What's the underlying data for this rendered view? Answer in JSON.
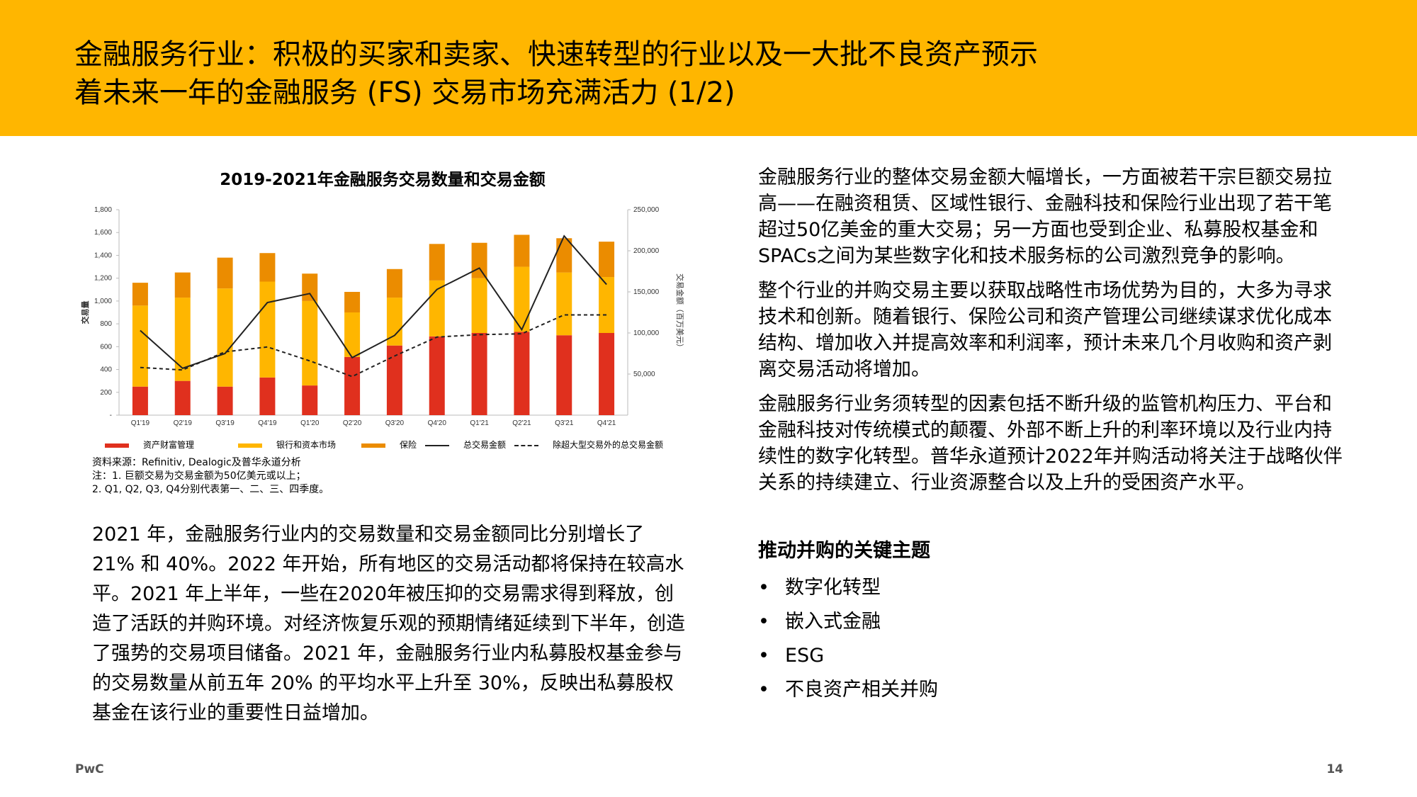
{
  "slide": {
    "title_line1": "金融服务行业：积极的买家和卖家、快速转型的行业以及一大批不良资产预示",
    "title_line2": "着未来一年的金融服务 (FS) 交易市场充满活力 (1/2)",
    "left_body": "2021 年，金融服务行业内的交易数量和交易金额同比分别增长了 21% 和 40%。2022 年开始，所有地区的交易活动都将保持在较高水平。2021 年上半年，一些在2020年被压抑的交易需求得到释放，创造了活跃的并购环境。对经济恢复乐观的预期情绪延续到下半年，创造了强势的交易项目储备。2021 年，金融服务行业内私募股权基金参与的交易数量从前五年 20% 的平均水平上升至 30%，反映出私募股权基金在该行业的重要性日益增加。",
    "right_paragraphs": [
      "金融服务行业的整体交易金额大幅增长，一方面被若干宗巨额交易拉高——在融资租赁、区域性银行、金融科技和保险行业出现了若干笔超过50亿美金的重大交易；另一方面也受到企业、私募股权基金和SPACs之间为某些数字化和技术服务标的公司激烈竞争的影响。",
      "整个行业的并购交易主要以获取战略性市场优势为目的，大多为寻求技术和创新。随着银行、保险公司和资产管理公司继续谋求优化成本结构、增加收入并提高效率和利润率，预计未来几个月收购和资产剥离交易活动将增加。",
      "金融服务行业务须转型的因素包括不断升级的监管机构压力、平台和金融科技对传统模式的颠覆、外部不断上升的利率环境以及行业内持续性的数字化转型。普华永道预计2022年并购活动将关注于战略伙伴关系的持续建立、行业资源整合以及上升的受困资产水平。"
    ],
    "themes_title": "推动并购的关键主题",
    "bullet_char": "•",
    "themes": [
      "数字化转型",
      "嵌入式金融",
      "ESG",
      "不良资产相关并购"
    ],
    "notes": [
      "资料来源：Refinitiv, Dealogic及普华永道分析",
      "注：1. 巨额交易为交易金额为50亿美元或以上；",
      "2. Q1, Q2, Q3, Q4分别代表第一、二、三、四季度。"
    ],
    "footer_brand": "PwC",
    "page_number": "14"
  },
  "colors": {
    "header_bg": "#FFB600",
    "asset_wealth": "#E0301E",
    "banking": "#FFB600",
    "insurance": "#EB8C00",
    "line": "#222222"
  },
  "chart_data": {
    "type": "bar",
    "stacked": true,
    "title": "2019-2021年金融服务交易数量和交易金额",
    "ylabel": "交易量",
    "y2label": "交易金额（百万美元）",
    "ylim": [
      0,
      1800
    ],
    "y2lim": [
      0,
      250000
    ],
    "yticks": [
      "-",
      "200",
      "400",
      "600",
      "800",
      "1,000",
      "1,200",
      "1,400",
      "1,600",
      "1,800"
    ],
    "y2ticks": [
      "50,000",
      "100,000",
      "150,000",
      "200,000",
      "250,000"
    ],
    "categories": [
      "Q1'19",
      "Q2'19",
      "Q3'19",
      "Q4'19",
      "Q1'20",
      "Q2'20",
      "Q3'20",
      "Q4'20",
      "Q1'21",
      "Q2'21",
      "Q3'21",
      "Q4'21"
    ],
    "series": [
      {
        "name": "资产财富管理",
        "kind": "bar",
        "color": "#E0301E",
        "values": [
          250,
          300,
          250,
          330,
          260,
          510,
          610,
          690,
          720,
          730,
          700,
          720
        ]
      },
      {
        "name": "银行和资本市场",
        "kind": "bar",
        "color": "#FFB600",
        "values": [
          710,
          730,
          860,
          840,
          740,
          390,
          420,
          490,
          480,
          570,
          550,
          490
        ]
      },
      {
        "name": "保险",
        "kind": "bar",
        "color": "#EB8C00",
        "values": [
          200,
          220,
          270,
          250,
          240,
          180,
          250,
          320,
          310,
          280,
          300,
          310
        ]
      },
      {
        "name": "总交易金额",
        "kind": "line",
        "axis": "y2",
        "style": "solid",
        "values": [
          103000,
          57000,
          75000,
          137000,
          148000,
          70000,
          97000,
          153000,
          179000,
          104000,
          218000,
          159000
        ]
      },
      {
        "name": "除超大型交易外的总交易金额",
        "kind": "line",
        "axis": "y2",
        "style": "dashed",
        "values": [
          58000,
          55000,
          77000,
          83000,
          66000,
          47000,
          72000,
          95000,
          98000,
          99000,
          122000,
          122000
        ]
      }
    ],
    "legend_position": "bottom",
    "grid": false
  }
}
